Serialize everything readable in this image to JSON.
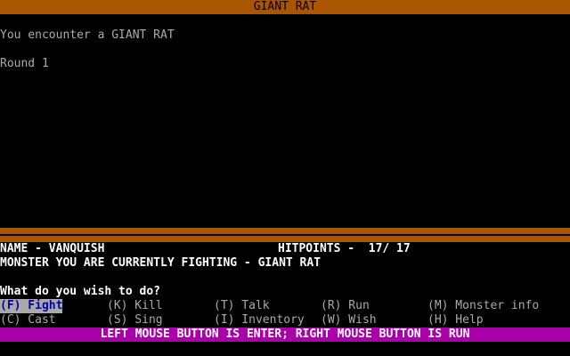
{
  "title": "GIANT RAT",
  "messages": [
    "You encounter a GIANT RAT",
    "Round 1"
  ],
  "status": {
    "name_label": "NAME - VANQUISH",
    "hitpoints_label": "HITPOINTS -  17/ 17",
    "monster_label": "MONSTER YOU ARE CURRENTLY FIGHTING - GIANT RAT"
  },
  "prompt": "What do you wish to do?",
  "options": [
    {
      "label": "(F) Fight",
      "selected": true
    },
    {
      "label": "(K) Kill"
    },
    {
      "label": "(T) Talk"
    },
    {
      "label": "(R) Run"
    },
    {
      "label": "(M) Monster info"
    },
    {
      "label": "(C) Cast"
    },
    {
      "label": "(S) Sing"
    },
    {
      "label": "(I) Inventory"
    },
    {
      "label": "(W) Wish"
    },
    {
      "label": "(H) Help"
    }
  ],
  "footer": "LEFT MOUSE BUTTON IS ENTER; RIGHT MOUSE BUTTON IS RUN",
  "colors": {
    "title_bar": "#aa5500",
    "footer_bar": "#aa00aa",
    "highlight": "#aaaaaa",
    "highlight_text": "#0000aa"
  }
}
